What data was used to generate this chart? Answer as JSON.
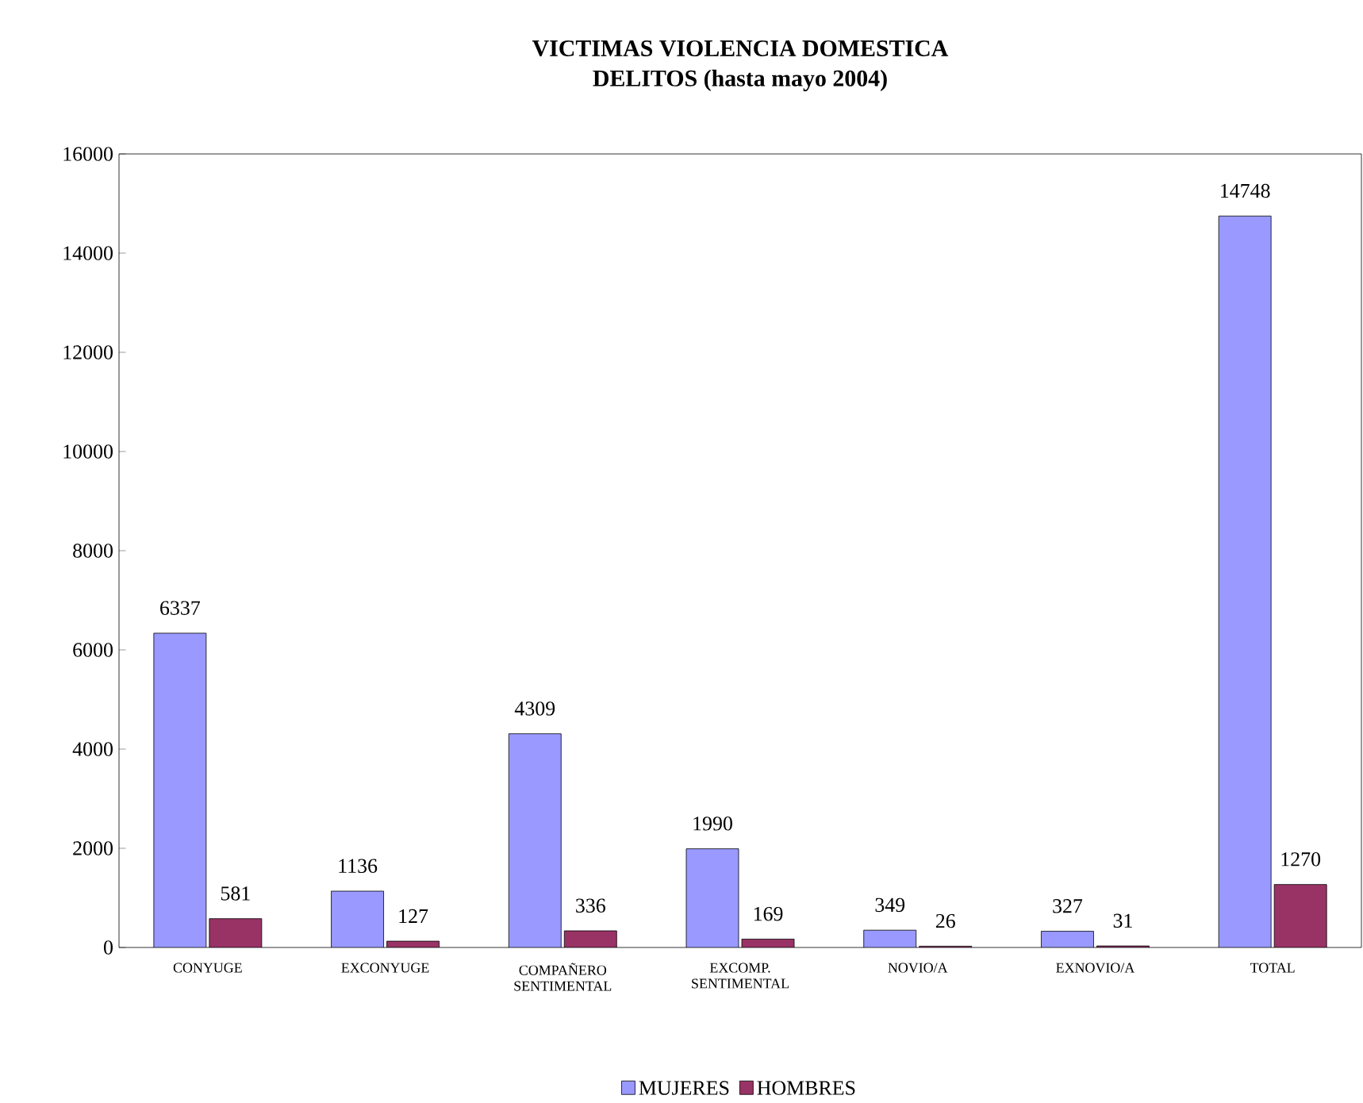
{
  "chart_data": {
    "type": "bar",
    "title": "VICTIMAS VIOLENCIA DOMESTICA\nDELITOS (hasta mayo 2004)",
    "categories": [
      "CONYUGE",
      "EXCONYUGE",
      "COMPAÑERO SENTIMENTAL",
      "EXCOMP. SENTIMENTAL",
      "NOVIO/A",
      "EXNOVIO/A",
      "TOTAL"
    ],
    "series": [
      {
        "name": "MUJERES",
        "color": "#9999ff",
        "values": [
          6337,
          1136,
          4309,
          1990,
          349,
          327,
          14748
        ]
      },
      {
        "name": "HOMBRES",
        "color": "#993366",
        "values": [
          581,
          127,
          336,
          169,
          26,
          31,
          1270
        ]
      }
    ],
    "ylim": [
      0,
      16000
    ],
    "yticks": [
      0,
      2000,
      4000,
      6000,
      8000,
      10000,
      12000,
      14000,
      16000
    ],
    "data_labels": true,
    "legend": "bottom",
    "grid": false
  }
}
